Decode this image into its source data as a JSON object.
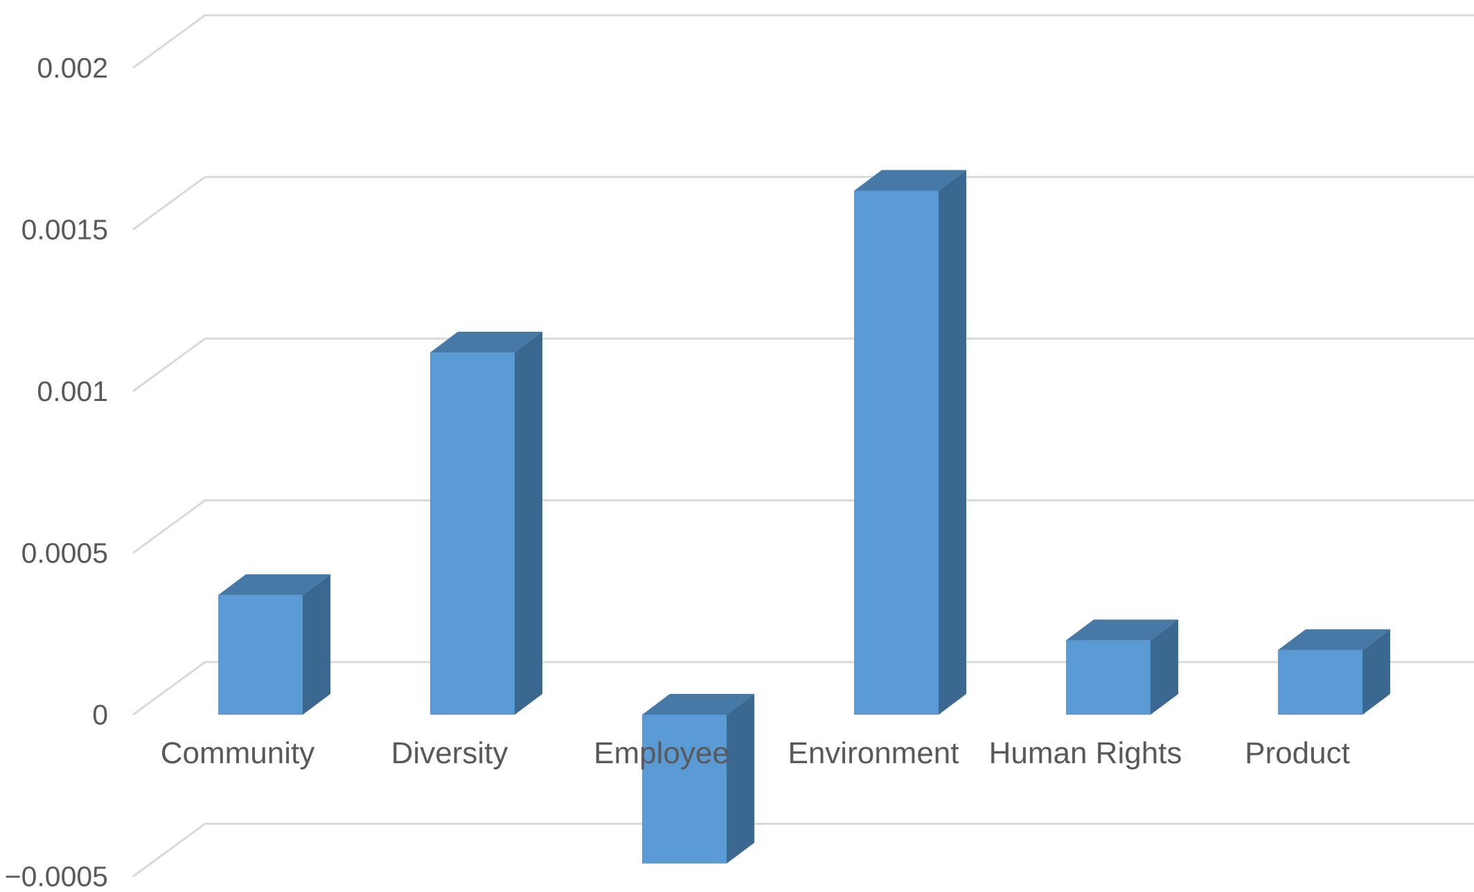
{
  "chart_data": {
    "type": "bar",
    "style": "3d-column",
    "categories": [
      "Community",
      "Diversity",
      "Employee",
      "Environment",
      "Human Rights",
      "Product"
    ],
    "values": [
      0.00037,
      0.00112,
      -0.00046,
      0.00162,
      0.00023,
      0.0002
    ],
    "ylim": [
      -0.0005,
      0.002
    ],
    "yticks": [
      -0.0005,
      0,
      0.0005,
      0.001,
      0.0015,
      0.002
    ],
    "ytick_labels": [
      "−0.0005",
      "0",
      "0.0005",
      "0.001",
      "0.0015",
      "0.002"
    ],
    "grid": true,
    "legend": "none",
    "colors": {
      "bar_front": "#5B9BD5",
      "bar_side": "#3A6890",
      "bar_top": "#4679A6",
      "grid": "#D9D9D9",
      "text": "#595959"
    }
  }
}
